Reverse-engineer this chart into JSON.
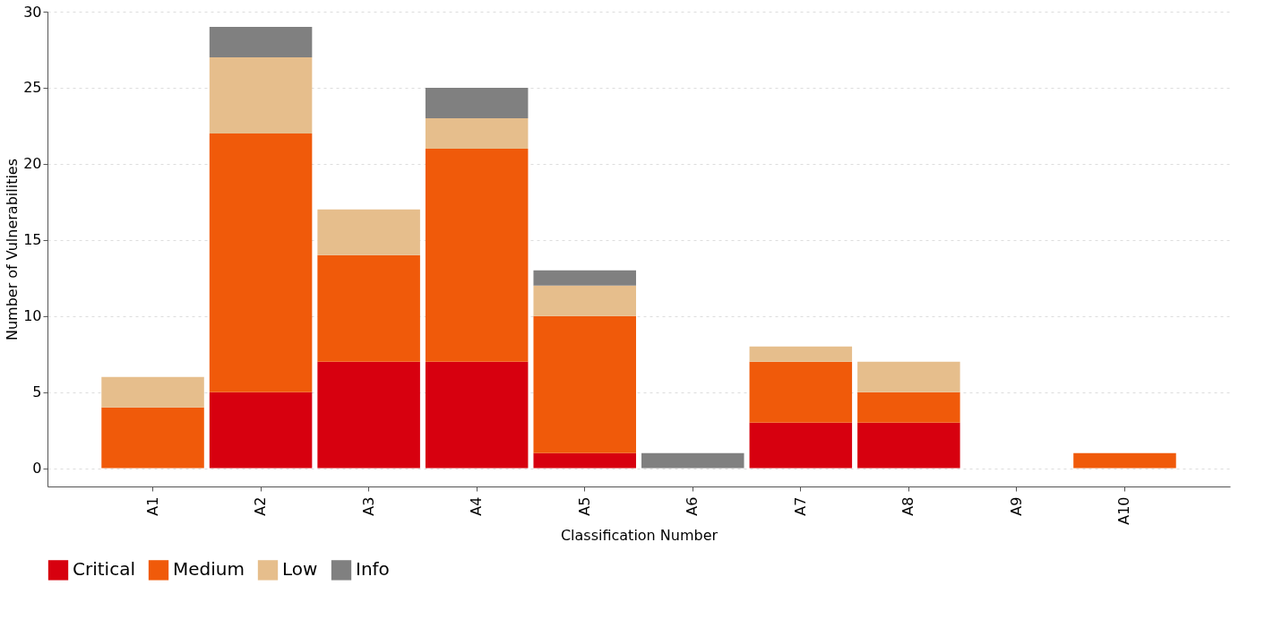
{
  "chart_data": {
    "type": "bar",
    "stacked": true,
    "xlabel": "Classification Number",
    "ylabel": "Number of Vulnerabilities",
    "categories": [
      "A1",
      "A2",
      "A3",
      "A4",
      "A5",
      "A6",
      "A7",
      "A8",
      "A9",
      "A10"
    ],
    "series": [
      {
        "name": "Critical",
        "color": "#d7000f",
        "values": [
          0,
          5,
          7,
          7,
          1,
          0,
          3,
          3,
          0,
          0
        ]
      },
      {
        "name": "Medium",
        "color": "#f05a0a",
        "values": [
          4,
          17,
          7,
          14,
          9,
          0,
          4,
          2,
          0,
          1
        ]
      },
      {
        "name": "Low",
        "color": "#e6be8c",
        "values": [
          2,
          5,
          3,
          2,
          2,
          0,
          1,
          2,
          0,
          0
        ]
      },
      {
        "name": "Info",
        "color": "#808080",
        "values": [
          0,
          2,
          0,
          2,
          1,
          1,
          0,
          0,
          0,
          0
        ]
      }
    ],
    "ylim": [
      -1.2,
      30
    ],
    "yticks": [
      0,
      5,
      10,
      15,
      20,
      25,
      30
    ],
    "grid": "y",
    "legend": "bottom"
  }
}
